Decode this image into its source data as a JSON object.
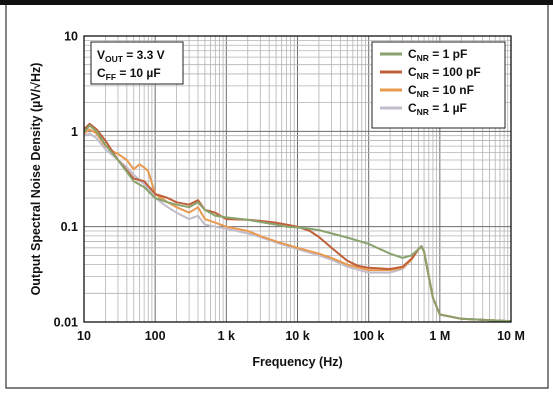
{
  "chart_data": {
    "type": "line",
    "xscale": "log",
    "yscale": "log",
    "xlim": [
      10,
      10000000
    ],
    "ylim": [
      0.01,
      10
    ],
    "grid": true,
    "xlabel": "Frequency (Hz)",
    "ylabel": "Output Spectral Noise Density (µV/√Hz)",
    "x_ticks": [
      {
        "value": 10,
        "label": "10"
      },
      {
        "value": 100,
        "label": "100"
      },
      {
        "value": 1000,
        "label": "1 k"
      },
      {
        "value": 10000,
        "label": "10 k"
      },
      {
        "value": 100000,
        "label": "100 k"
      },
      {
        "value": 1000000,
        "label": "1 M"
      },
      {
        "value": 10000000,
        "label": "10 M"
      }
    ],
    "y_ticks": [
      {
        "value": 0.01,
        "label": "0.01"
      },
      {
        "value": 0.1,
        "label": "0.1"
      },
      {
        "value": 1,
        "label": "1"
      },
      {
        "value": 10,
        "label": "10"
      }
    ],
    "annotation": {
      "line1": {
        "main": "V",
        "sub": "OUT",
        "rest": " = 3.3 V"
      },
      "line2": {
        "main": "C",
        "sub": "FF",
        "rest": " = 10 µF"
      }
    },
    "legend_position": "top-right",
    "series": [
      {
        "name": "CNR = 1 pF",
        "label_main": "C",
        "label_sub": "NR",
        "label_rest": " = 1 pF",
        "color": "#8aa36e",
        "points": [
          [
            10,
            0.98
          ],
          [
            12,
            1.15
          ],
          [
            15,
            1.0
          ],
          [
            20,
            0.72
          ],
          [
            30,
            0.5
          ],
          [
            50,
            0.3
          ],
          [
            70,
            0.26
          ],
          [
            100,
            0.2
          ],
          [
            150,
            0.18
          ],
          [
            200,
            0.17
          ],
          [
            300,
            0.16
          ],
          [
            400,
            0.18
          ],
          [
            500,
            0.15
          ],
          [
            700,
            0.13
          ],
          [
            1000,
            0.125
          ],
          [
            2000,
            0.118
          ],
          [
            3000,
            0.112
          ],
          [
            5000,
            0.105
          ],
          [
            7000,
            0.1
          ],
          [
            10000,
            0.098
          ],
          [
            15000,
            0.095
          ],
          [
            20000,
            0.092
          ],
          [
            30000,
            0.085
          ],
          [
            50000,
            0.077
          ],
          [
            100000,
            0.066
          ],
          [
            200000,
            0.052
          ],
          [
            300000,
            0.047
          ],
          [
            400000,
            0.05
          ],
          [
            500000,
            0.058
          ],
          [
            550000,
            0.062
          ],
          [
            600000,
            0.055
          ],
          [
            700000,
            0.03
          ],
          [
            800000,
            0.018
          ],
          [
            1000000,
            0.012
          ],
          [
            2000000,
            0.0108
          ],
          [
            10000000,
            0.0102
          ]
        ]
      },
      {
        "name": "CNR = 100 pF",
        "label_main": "C",
        "label_sub": "NR",
        "label_rest": " = 100 pF",
        "color": "#c0603a",
        "points": [
          [
            10,
            1.05
          ],
          [
            12,
            1.2
          ],
          [
            15,
            1.05
          ],
          [
            20,
            0.8
          ],
          [
            30,
            0.5
          ],
          [
            50,
            0.32
          ],
          [
            70,
            0.3
          ],
          [
            100,
            0.22
          ],
          [
            150,
            0.2
          ],
          [
            200,
            0.18
          ],
          [
            300,
            0.17
          ],
          [
            400,
            0.19
          ],
          [
            500,
            0.15
          ],
          [
            700,
            0.14
          ],
          [
            1000,
            0.12
          ],
          [
            2000,
            0.118
          ],
          [
            3000,
            0.115
          ],
          [
            5000,
            0.11
          ],
          [
            7000,
            0.105
          ],
          [
            10000,
            0.1
          ],
          [
            15000,
            0.09
          ],
          [
            20000,
            0.078
          ],
          [
            30000,
            0.06
          ],
          [
            50000,
            0.044
          ],
          [
            70000,
            0.039
          ],
          [
            100000,
            0.037
          ],
          [
            200000,
            0.036
          ],
          [
            300000,
            0.038
          ],
          [
            400000,
            0.046
          ],
          [
            500000,
            0.058
          ],
          [
            550000,
            0.062
          ],
          [
            600000,
            0.055
          ],
          [
            700000,
            0.03
          ],
          [
            800000,
            0.018
          ],
          [
            1000000,
            0.012
          ],
          [
            2000000,
            0.0108
          ],
          [
            10000000,
            0.0102
          ]
        ]
      },
      {
        "name": "CNR = 10 nF",
        "label_main": "C",
        "label_sub": "NR",
        "label_rest": " = 10 nF",
        "color": "#e89a50",
        "points": [
          [
            10,
            0.95
          ],
          [
            12,
            1.05
          ],
          [
            15,
            0.95
          ],
          [
            20,
            0.7
          ],
          [
            25,
            0.62
          ],
          [
            30,
            0.58
          ],
          [
            40,
            0.5
          ],
          [
            50,
            0.4
          ],
          [
            60,
            0.45
          ],
          [
            70,
            0.42
          ],
          [
            80,
            0.38
          ],
          [
            100,
            0.22
          ],
          [
            150,
            0.18
          ],
          [
            200,
            0.16
          ],
          [
            300,
            0.14
          ],
          [
            400,
            0.16
          ],
          [
            500,
            0.12
          ],
          [
            700,
            0.11
          ],
          [
            1000,
            0.1
          ],
          [
            2000,
            0.09
          ],
          [
            3000,
            0.08
          ],
          [
            5000,
            0.07
          ],
          [
            10000,
            0.06
          ],
          [
            20000,
            0.052
          ],
          [
            30000,
            0.047
          ],
          [
            50000,
            0.04
          ],
          [
            100000,
            0.035
          ],
          [
            200000,
            0.035
          ],
          [
            300000,
            0.037
          ],
          [
            400000,
            0.045
          ],
          [
            500000,
            0.058
          ],
          [
            550000,
            0.062
          ],
          [
            600000,
            0.055
          ],
          [
            700000,
            0.03
          ],
          [
            800000,
            0.018
          ],
          [
            1000000,
            0.012
          ],
          [
            2000000,
            0.0108
          ],
          [
            10000000,
            0.0102
          ]
        ]
      },
      {
        "name": "CNR = 1 µF",
        "label_main": "C",
        "label_sub": "NR",
        "label_rest": " = 1 µF",
        "color": "#c3bccb",
        "points": [
          [
            10,
            0.9
          ],
          [
            12,
            0.95
          ],
          [
            15,
            0.85
          ],
          [
            20,
            0.65
          ],
          [
            30,
            0.5
          ],
          [
            40,
            0.42
          ],
          [
            50,
            0.35
          ],
          [
            70,
            0.28
          ],
          [
            100,
            0.2
          ],
          [
            150,
            0.16
          ],
          [
            200,
            0.14
          ],
          [
            300,
            0.12
          ],
          [
            400,
            0.13
          ],
          [
            500,
            0.105
          ],
          [
            700,
            0.1
          ],
          [
            1000,
            0.095
          ],
          [
            2000,
            0.085
          ],
          [
            3000,
            0.078
          ],
          [
            5000,
            0.068
          ],
          [
            10000,
            0.058
          ],
          [
            20000,
            0.05
          ],
          [
            30000,
            0.045
          ],
          [
            50000,
            0.038
          ],
          [
            100000,
            0.033
          ],
          [
            200000,
            0.033
          ],
          [
            300000,
            0.036
          ],
          [
            400000,
            0.045
          ],
          [
            500000,
            0.058
          ],
          [
            550000,
            0.063
          ],
          [
            600000,
            0.056
          ],
          [
            700000,
            0.03
          ],
          [
            800000,
            0.018
          ],
          [
            1000000,
            0.012
          ],
          [
            2000000,
            0.0108
          ],
          [
            10000000,
            0.0102
          ]
        ]
      }
    ]
  }
}
